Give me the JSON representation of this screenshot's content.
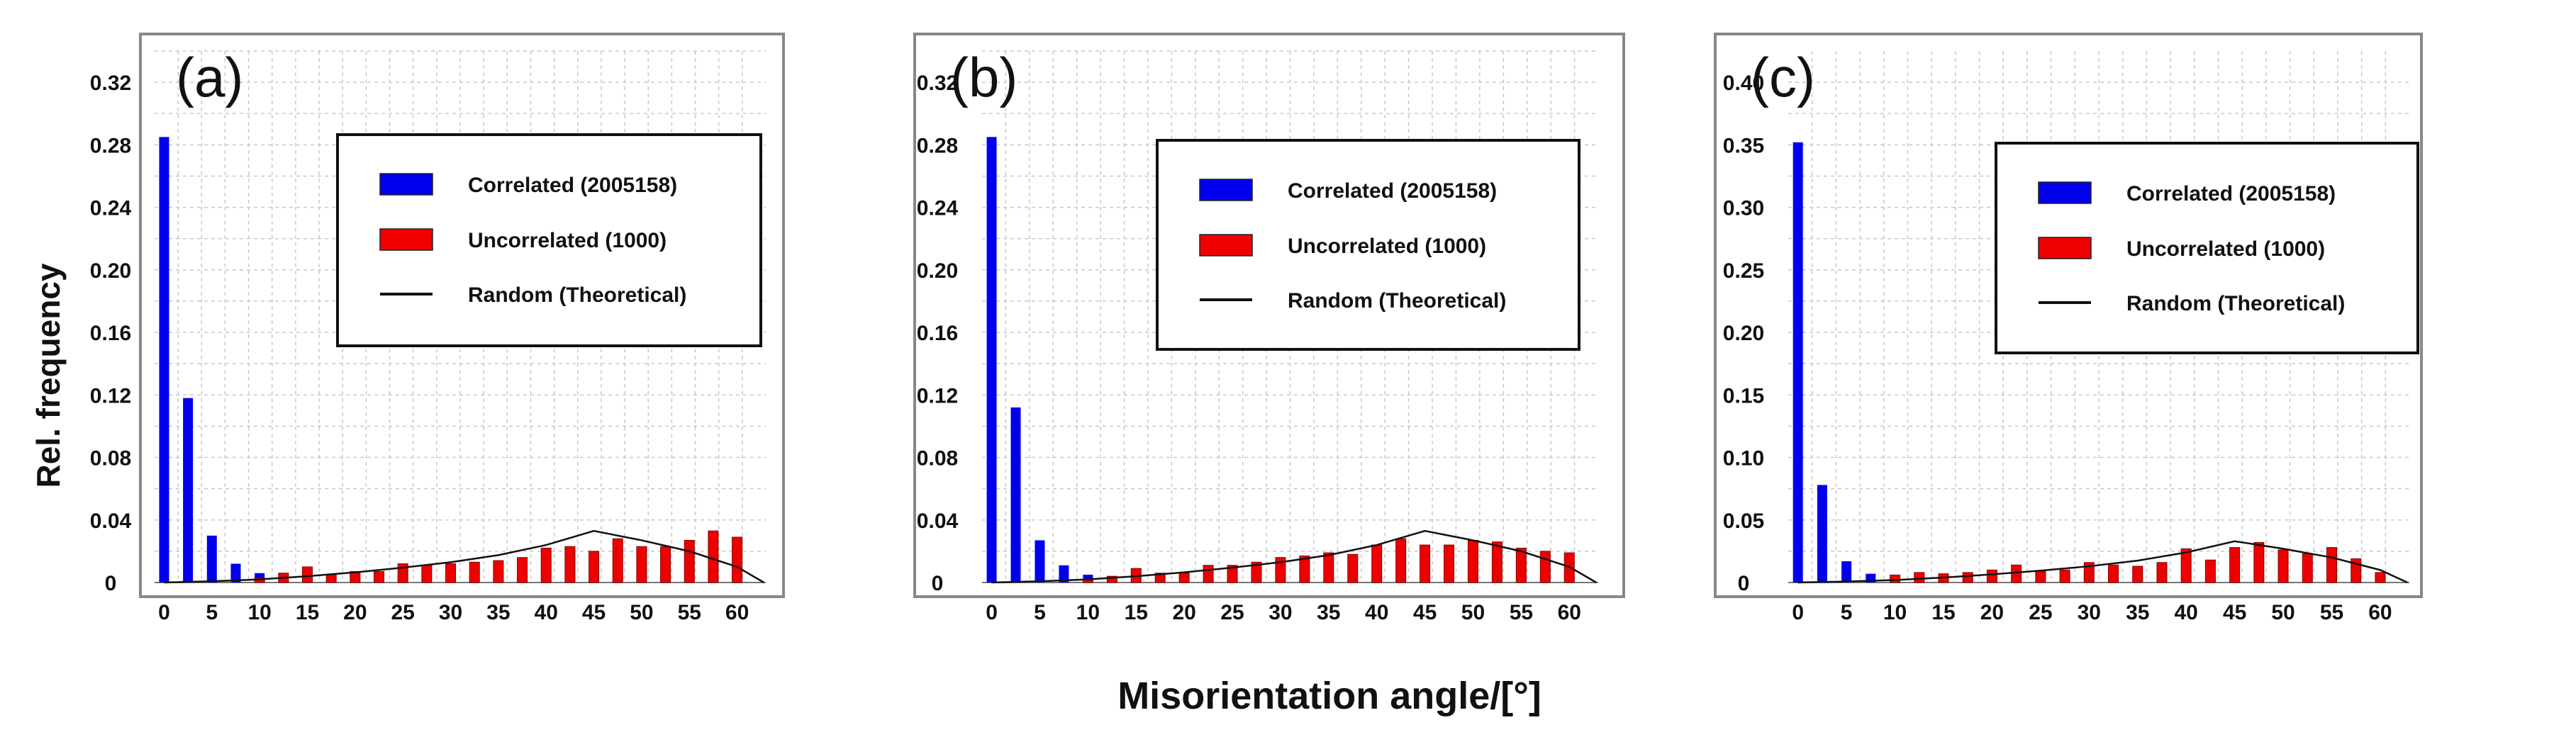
{
  "figure": {
    "ylabel": "Rel. frequency",
    "xlabel": "Misorientation angle/[°]"
  },
  "chart_data": [
    {
      "type": "bar",
      "panel_label": "(a)",
      "ylabel": "Rel. frequency",
      "xlabel": "Misorientation angle/[°]",
      "xlim": [
        -1,
        63
      ],
      "ylim": [
        0,
        0.34
      ],
      "xticks": [
        0,
        5,
        10,
        15,
        20,
        25,
        30,
        35,
        40,
        45,
        50,
        55,
        60
      ],
      "yticks": [
        0,
        0.04,
        0.08,
        0.12,
        0.16,
        0.2,
        0.24,
        0.28,
        0.32
      ],
      "ytick_labels": [
        "0",
        "0.04",
        "0.08",
        "0.12",
        "0.16",
        "0.20",
        "0.24",
        "0.28",
        "0.32"
      ],
      "legend": {
        "position": "top-center",
        "entries": [
          "Correlated (2005158)",
          "Uncorrelated (1000)",
          "Random (Theoretical)"
        ]
      },
      "series": [
        {
          "name": "Correlated (2005158)",
          "color": "#0000ee",
          "x": [
            0,
            2.5,
            5,
            7.5,
            10,
            12.5,
            15,
            17.5,
            20,
            22.5,
            25,
            27.5,
            30,
            32.5,
            35,
            37.5,
            40,
            42.5,
            45,
            47.5,
            50,
            52.5,
            55,
            57.5,
            60
          ],
          "values": [
            0.285,
            0.118,
            0.03,
            0.012,
            0.006,
            0.003,
            0.002,
            0.001,
            0.001,
            0,
            0,
            0,
            0,
            0,
            0,
            0,
            0,
            0,
            0,
            0,
            0,
            0,
            0,
            0,
            0.001
          ]
        },
        {
          "name": "Uncorrelated (1000)",
          "color": "#ee0000",
          "x": [
            10,
            12.5,
            15,
            17.5,
            20,
            22.5,
            25,
            27.5,
            30,
            32.5,
            35,
            37.5,
            40,
            42.5,
            45,
            47.5,
            50,
            52.5,
            55,
            57.5,
            60
          ],
          "values": [
            0.003,
            0.006,
            0.01,
            0.005,
            0.007,
            0.007,
            0.012,
            0.011,
            0.012,
            0.013,
            0.014,
            0.016,
            0.022,
            0.023,
            0.02,
            0.028,
            0.023,
            0.023,
            0.027,
            0.033,
            0.029
          ]
        },
        {
          "name": "Random (Theoretical)",
          "type": "line",
          "color": "#111111",
          "x": [
            0,
            5,
            10,
            15,
            20,
            25,
            30,
            35,
            40,
            45,
            50,
            55,
            60,
            62.8
          ],
          "values": [
            0.0,
            0.0008,
            0.002,
            0.004,
            0.0065,
            0.0095,
            0.013,
            0.0175,
            0.024,
            0.033,
            0.027,
            0.02,
            0.01,
            0.0
          ]
        }
      ]
    },
    {
      "type": "bar",
      "panel_label": "(b)",
      "xlabel": "Misorientation angle/[°]",
      "xlim": [
        -1,
        63
      ],
      "ylim": [
        0,
        0.34
      ],
      "xticks": [
        0,
        5,
        10,
        15,
        20,
        25,
        30,
        35,
        40,
        45,
        50,
        55,
        60
      ],
      "yticks": [
        0,
        0.04,
        0.08,
        0.12,
        0.16,
        0.2,
        0.24,
        0.28,
        0.32
      ],
      "ytick_labels": [
        "0",
        "0.04",
        "0.08",
        "0.12",
        "0.16",
        "0.20",
        "0.24",
        "0.28",
        "0.32"
      ],
      "legend": {
        "position": "top-center",
        "entries": [
          "Correlated (2005158)",
          "Uncorrelated (1000)",
          "Random (Theoretical)"
        ]
      },
      "series": [
        {
          "name": "Correlated (2005158)",
          "color": "#0000ee",
          "x": [
            0,
            2.5,
            5,
            7.5,
            10,
            12.5,
            15,
            17.5,
            20,
            22.5,
            25,
            27.5,
            30,
            32.5,
            35,
            37.5,
            40,
            42.5,
            45,
            47.5,
            50,
            52.5,
            55,
            57.5,
            60
          ],
          "values": [
            0.285,
            0.112,
            0.027,
            0.011,
            0.005,
            0.002,
            0.002,
            0.001,
            0.001,
            0,
            0,
            0,
            0,
            0,
            0,
            0,
            0,
            0,
            0,
            0,
            0,
            0,
            0,
            0,
            0.002
          ]
        },
        {
          "name": "Uncorrelated (1000)",
          "color": "#ee0000",
          "x": [
            10,
            12.5,
            15,
            17.5,
            20,
            22.5,
            25,
            27.5,
            30,
            32.5,
            35,
            37.5,
            40,
            42.5,
            45,
            47.5,
            50,
            52.5,
            55,
            57.5,
            60
          ],
          "values": [
            0.002,
            0.004,
            0.009,
            0.006,
            0.006,
            0.011,
            0.011,
            0.013,
            0.016,
            0.017,
            0.019,
            0.018,
            0.024,
            0.028,
            0.024,
            0.024,
            0.027,
            0.026,
            0.022,
            0.02,
            0.019
          ]
        },
        {
          "name": "Random (Theoretical)",
          "type": "line",
          "color": "#111111",
          "x": [
            0,
            5,
            10,
            15,
            20,
            25,
            30,
            35,
            40,
            45,
            50,
            55,
            60,
            62.8
          ],
          "values": [
            0.0,
            0.0008,
            0.002,
            0.004,
            0.0065,
            0.0095,
            0.013,
            0.0175,
            0.024,
            0.033,
            0.027,
            0.02,
            0.01,
            0.0
          ]
        }
      ]
    },
    {
      "type": "bar",
      "panel_label": "(c)",
      "xlabel": "Misorientation angle/[°]",
      "xlim": [
        -1,
        63
      ],
      "ylim": [
        0,
        0.425
      ],
      "xticks": [
        0,
        5,
        10,
        15,
        20,
        25,
        30,
        35,
        40,
        45,
        50,
        55,
        60
      ],
      "yticks": [
        0,
        0.05,
        0.1,
        0.15,
        0.2,
        0.25,
        0.3,
        0.35,
        0.4
      ],
      "ytick_labels": [
        "0",
        "0.05",
        "0.10",
        "0.15",
        "0.20",
        "0.25",
        "0.30",
        "0.35",
        "0.40"
      ],
      "legend": {
        "position": "top-center",
        "entries": [
          "Correlated (2005158)",
          "Uncorrelated (1000)",
          "Random (Theoretical)"
        ]
      },
      "series": [
        {
          "name": "Correlated (2005158)",
          "color": "#0000ee",
          "x": [
            0,
            2.5,
            5,
            7.5,
            10,
            12.5,
            15,
            17.5,
            20,
            22.5,
            25,
            27.5,
            30,
            32.5,
            35,
            37.5,
            40,
            42.5,
            45,
            47.5,
            50,
            52.5,
            55,
            57.5,
            60
          ],
          "values": [
            0.352,
            0.078,
            0.017,
            0.007,
            0.003,
            0.002,
            0.001,
            0.001,
            0,
            0,
            0,
            0,
            0,
            0,
            0,
            0,
            0,
            0,
            0,
            0,
            0,
            0,
            0,
            0,
            0
          ]
        },
        {
          "name": "Uncorrelated (1000)",
          "color": "#ee0000",
          "x": [
            10,
            12.5,
            15,
            17.5,
            20,
            22.5,
            25,
            27.5,
            30,
            32.5,
            35,
            37.5,
            40,
            42.5,
            45,
            47.5,
            50,
            52.5,
            55,
            57.5,
            60
          ],
          "values": [
            0.006,
            0.008,
            0.007,
            0.008,
            0.01,
            0.014,
            0.009,
            0.01,
            0.016,
            0.014,
            0.013,
            0.016,
            0.027,
            0.018,
            0.028,
            0.032,
            0.026,
            0.023,
            0.028,
            0.019,
            0.008
          ]
        },
        {
          "name": "Random (Theoretical)",
          "type": "line",
          "color": "#111111",
          "x": [
            0,
            5,
            10,
            15,
            20,
            25,
            30,
            35,
            40,
            45,
            50,
            55,
            60,
            62.8
          ],
          "values": [
            0.0,
            0.0008,
            0.002,
            0.004,
            0.0065,
            0.0095,
            0.013,
            0.0175,
            0.024,
            0.033,
            0.027,
            0.02,
            0.01,
            0.0
          ]
        }
      ]
    }
  ]
}
